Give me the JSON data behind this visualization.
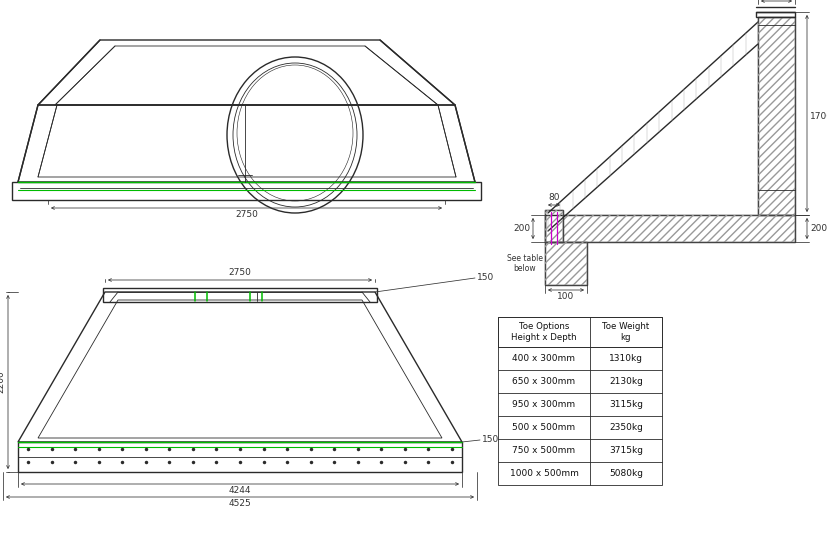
{
  "bg_color": "#ffffff",
  "line_color": "#2a2a2a",
  "green_color": "#00bb00",
  "dim_color": "#333333",
  "table": {
    "rows": [
      [
        "400 x 300mm",
        "1310kg"
      ],
      [
        "650 x 300mm",
        "2130kg"
      ],
      [
        "950 x 300mm",
        "3115kg"
      ],
      [
        "500 x 500mm",
        "2350kg"
      ],
      [
        "750 x 500mm",
        "3715kg"
      ],
      [
        "1000 x 500mm",
        "5080kg"
      ]
    ]
  }
}
